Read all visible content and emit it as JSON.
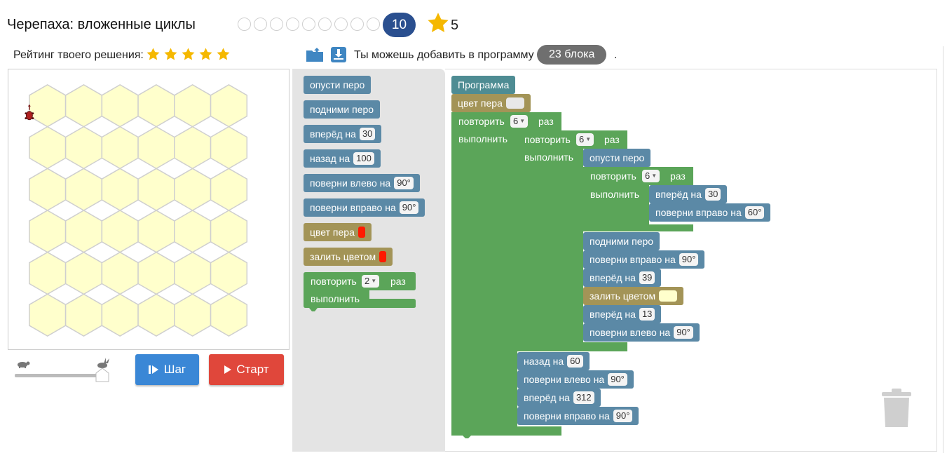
{
  "header": {
    "title": "Черепаха: вложенные циклы",
    "current_level": "10",
    "stars_count": "5",
    "rating_label": "Рейтинг твоего решения:",
    "add_text": "Ты можешь добавить в программу",
    "blocks_badge": "23 блока",
    "add_dot": "."
  },
  "colors": {
    "motion": "#5b89a6",
    "pen": "#a39457",
    "loop": "#5ba559",
    "program": "#4e8c93",
    "hex_fill": "#ffffcc",
    "step_button": "#3a87d6",
    "start_button": "#e0473b",
    "star": "#f5b800"
  },
  "controls": {
    "step_label": "Шаг",
    "start_label": "Старт"
  },
  "toolbox": {
    "pen_down": "опусти перо",
    "pen_up": "подними перо",
    "forward": "вперёд на",
    "forward_val": "30",
    "back": "назад на",
    "back_val": "100",
    "turn_left": "поверни влево на",
    "turn_left_val": "90°",
    "turn_right": "поверни вправо на",
    "turn_right_val": "90°",
    "pen_color": "цвет пера",
    "fill_color": "залить цветом",
    "repeat": "повторить",
    "repeat_val": "2",
    "times": "раз",
    "do": "выполнить"
  },
  "program": {
    "title": "Программа",
    "pen_color": "цвет пера",
    "repeat": "повторить",
    "times": "раз",
    "do": "выполнить",
    "outer_repeat_val": "6",
    "mid_repeat_val": "6",
    "pen_down": "опусти перо",
    "inner_repeat_val": "6",
    "fwd1": "вперёд на",
    "fwd1_val": "30",
    "right1": "поверни вправо на",
    "right1_val": "60°",
    "pen_up": "подними перо",
    "right2": "поверни вправо на",
    "right2_val": "90°",
    "fwd2": "вперёд на",
    "fwd2_val": "39",
    "fill": "залить цветом",
    "fwd3": "вперёд на",
    "fwd3_val": "13",
    "left1": "поверни влево на",
    "left1_val": "90°",
    "back1": "назад на",
    "back1_val": "60",
    "left2": "поверни влево на",
    "left2_val": "90°",
    "fwd4": "вперёд на",
    "fwd4_val": "312",
    "right3": "поверни вправо на",
    "right3_val": "90°"
  }
}
